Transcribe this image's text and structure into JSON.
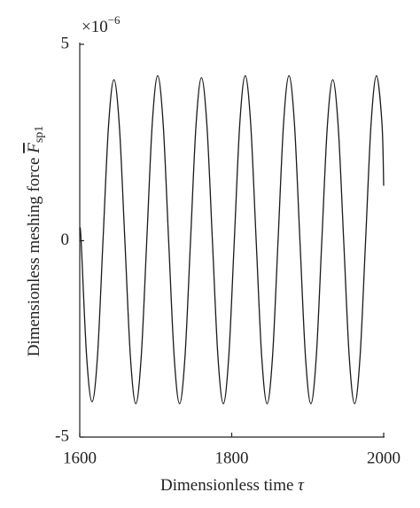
{
  "chart_data": {
    "type": "line",
    "xlabel": "Dimensionless time",
    "xlabel_symbol": "τ",
    "ylabel": "Dimensionless meshing force",
    "ylabel_symbol": "F",
    "ylabel_subscript": "sp1",
    "y_scale_base": "×10",
    "y_scale_exponent": "−6",
    "x": [
      1600,
      1601.8,
      1609,
      1616.2,
      1623.4,
      1630.6,
      1637.8,
      1645,
      1652.2,
      1659.4,
      1666.6,
      1673.8,
      1681,
      1688.2,
      1695.4,
      1702.6,
      1709.8,
      1717,
      1724.2,
      1731.4,
      1738.6,
      1745.8,
      1753,
      1760.2,
      1767.4,
      1774.6,
      1781.8,
      1789,
      1796.2,
      1803.4,
      1810.6,
      1817.8,
      1825,
      1832.2,
      1839.4,
      1846.6,
      1853.8,
      1861,
      1868.2,
      1875.4,
      1882.6,
      1889.8,
      1897,
      1904.2,
      1911.4,
      1918.6,
      1925.8,
      1933,
      1940.2,
      1947.4,
      1954.6,
      1961.8,
      1969,
      1976.2,
      1983.4,
      1990.6,
      1997.8,
      2000
    ],
    "series": [
      {
        "color": "#1a1a1a",
        "values": [
          0.3,
          0,
          -2.93,
          -4.1,
          -2.93,
          0,
          2.9,
          4.1,
          2.9,
          0,
          -2.93,
          -4.15,
          -2.93,
          0,
          2.97,
          4.2,
          2.97,
          0,
          -2.93,
          -4.15,
          -2.93,
          0,
          2.93,
          4.15,
          2.93,
          0,
          -2.93,
          -4.15,
          -2.93,
          0,
          2.97,
          4.2,
          2.97,
          0,
          -2.93,
          -4.15,
          -2.93,
          0,
          2.97,
          4.2,
          2.97,
          0,
          -2.93,
          -4.15,
          -2.93,
          0,
          2.9,
          4.1,
          2.9,
          0,
          -2.93,
          -4.15,
          -2.93,
          0,
          2.97,
          4.2,
          2.97,
          1.4
        ]
      }
    ],
    "xlim": [
      1600,
      2000
    ],
    "xticks": [
      1600,
      1800,
      2000
    ],
    "ylim": [
      -5,
      5
    ],
    "yticks": [
      -5,
      0,
      5
    ],
    "grid": false
  }
}
